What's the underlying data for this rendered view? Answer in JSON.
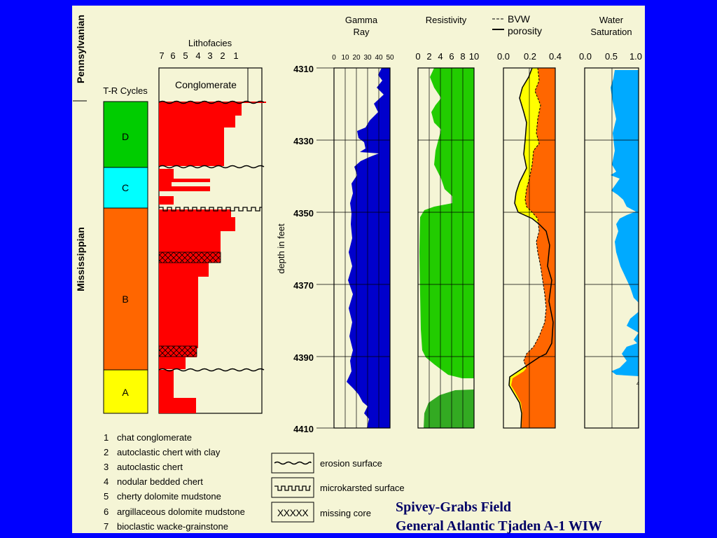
{
  "title": {
    "line1": "Spivey-Grabs Field",
    "line2": "General Atlantic Tjaden A-1 WIW"
  },
  "periods": {
    "upper": "Pennsylvanian",
    "lower": "Mississippian"
  },
  "tr_cycles": {
    "header": "T-R Cycles",
    "cycles": [
      {
        "label": "D",
        "color": "#00cc00"
      },
      {
        "label": "C",
        "color": "#00ffff"
      },
      {
        "label": "B",
        "color": "#ff6600"
      },
      {
        "label": "A",
        "color": "#ffff00"
      }
    ]
  },
  "lithofacies": {
    "header": "Lithofacies",
    "scale": [
      "7",
      "6",
      "5",
      "4",
      "3",
      "2",
      "1"
    ],
    "conglomerate_label": "Conglomerate",
    "fill_color": "#ff0000"
  },
  "depth_axis": {
    "label": "depth in feet",
    "ticks": [
      "4310",
      "4330",
      "4350",
      "4370",
      "4390",
      "4410"
    ]
  },
  "tracks": {
    "gamma": {
      "title1": "Gamma",
      "title2": "Ray",
      "ticks": [
        "0",
        "10",
        "20",
        "30",
        "40",
        "50"
      ],
      "color": "#0000cc"
    },
    "resistivity": {
      "title": "Resistivity",
      "ticks": [
        "0",
        "2",
        "4",
        "6",
        "8",
        "10"
      ],
      "color": "#22cc00",
      "lower_color": "#33aa22"
    },
    "porosity": {
      "legend_bvw": "BVW",
      "legend_porosity": "porosity",
      "ticks": [
        "0.0",
        "0.2",
        "0.4"
      ],
      "bvw_color": "#ff6600",
      "hc_color": "#ffff00"
    },
    "water_saturation": {
      "title1": "Water",
      "title2": "Saturation",
      "ticks": [
        "0.0",
        "0.5",
        "1.0"
      ],
      "color": "#00aaff"
    }
  },
  "lithofacies_legend": [
    {
      "num": "1",
      "text": "chat conglomerate"
    },
    {
      "num": "2",
      "text": "autoclastic chert with clay"
    },
    {
      "num": "3",
      "text": "autoclastic chert"
    },
    {
      "num": "4",
      "text": "nodular bedded chert"
    },
    {
      "num": "5",
      "text": "cherty dolomite mudstone"
    },
    {
      "num": "6",
      "text": "argillaceous dolomite mudstone"
    },
    {
      "num": "7",
      "text": "bioclastic wacke-grainstone"
    }
  ],
  "symbol_legend": {
    "erosion": "erosion surface",
    "microkarst": "microkarsted surface",
    "missing_symbol": "XXXXX",
    "missing": "missing core"
  },
  "small_mark": "4"
}
